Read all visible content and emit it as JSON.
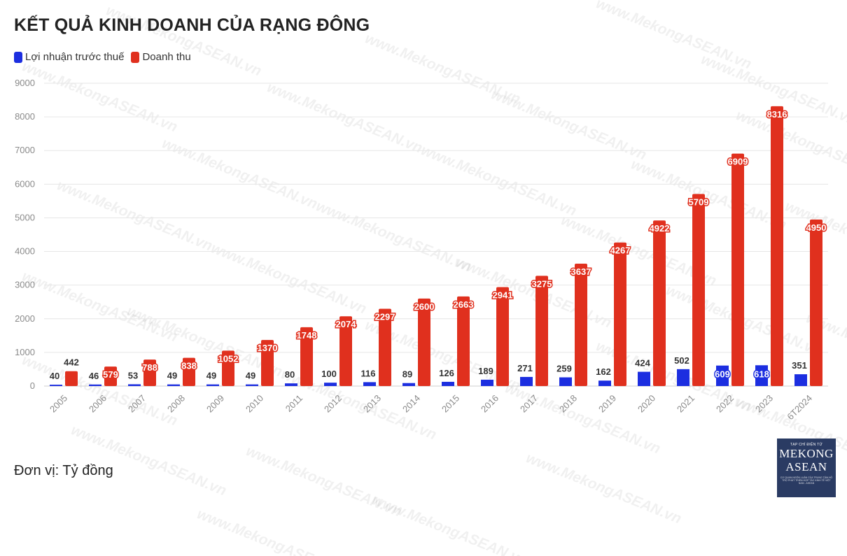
{
  "title": "KẾT QUẢ KINH DOANH CỦA RẠNG ĐÔNG",
  "legend": [
    {
      "label": "Lợi nhuận trước thuế",
      "color": "#1c2ee0"
    },
    {
      "label": "Doanh thu",
      "color": "#e0301e"
    }
  ],
  "unit_note": "Đơn vị: Tỷ đồng",
  "logo": {
    "small": "TẠP CHÍ ĐIỆN TỬ",
    "line1": "MEKONG",
    "line2": "ASEAN",
    "tiny": "CƠ QUAN NGÔN LUẬN CỦA TRUNG TÂM HỖ TRỢ PHÁT TRIỂN HỢP TÁC KINH TẾ VIỆT NAM - ASEAN"
  },
  "watermark": "www.MekongASEAN.vn",
  "chart_data": {
    "type": "bar",
    "categories": [
      "2005",
      "2006",
      "2007",
      "2008",
      "2009",
      "2010",
      "2011",
      "2012",
      "2013",
      "2014",
      "2015",
      "2016",
      "2017",
      "2018",
      "2019",
      "2020",
      "2021",
      "2022",
      "2023",
      "6T2024"
    ],
    "series": [
      {
        "name": "Lợi nhuận trước thuế",
        "color": "#1c2ee0",
        "values": [
          40,
          46,
          53,
          49,
          49,
          49,
          80,
          100,
          116,
          89,
          126,
          189,
          271,
          259,
          162,
          424,
          502,
          609,
          618,
          351
        ]
      },
      {
        "name": "Doanh thu",
        "color": "#e0301e",
        "values": [
          442,
          579,
          788,
          838,
          1052,
          1370,
          1748,
          2074,
          2297,
          2600,
          2663,
          2941,
          3275,
          3637,
          4267,
          4922,
          5709,
          6909,
          8316,
          4950
        ]
      }
    ],
    "yticks": [
      0,
      1000,
      2000,
      3000,
      4000,
      5000,
      6000,
      7000,
      8000,
      9000
    ],
    "ylim": [
      0,
      9000
    ],
    "grid": true,
    "legend_position": "top-left"
  }
}
